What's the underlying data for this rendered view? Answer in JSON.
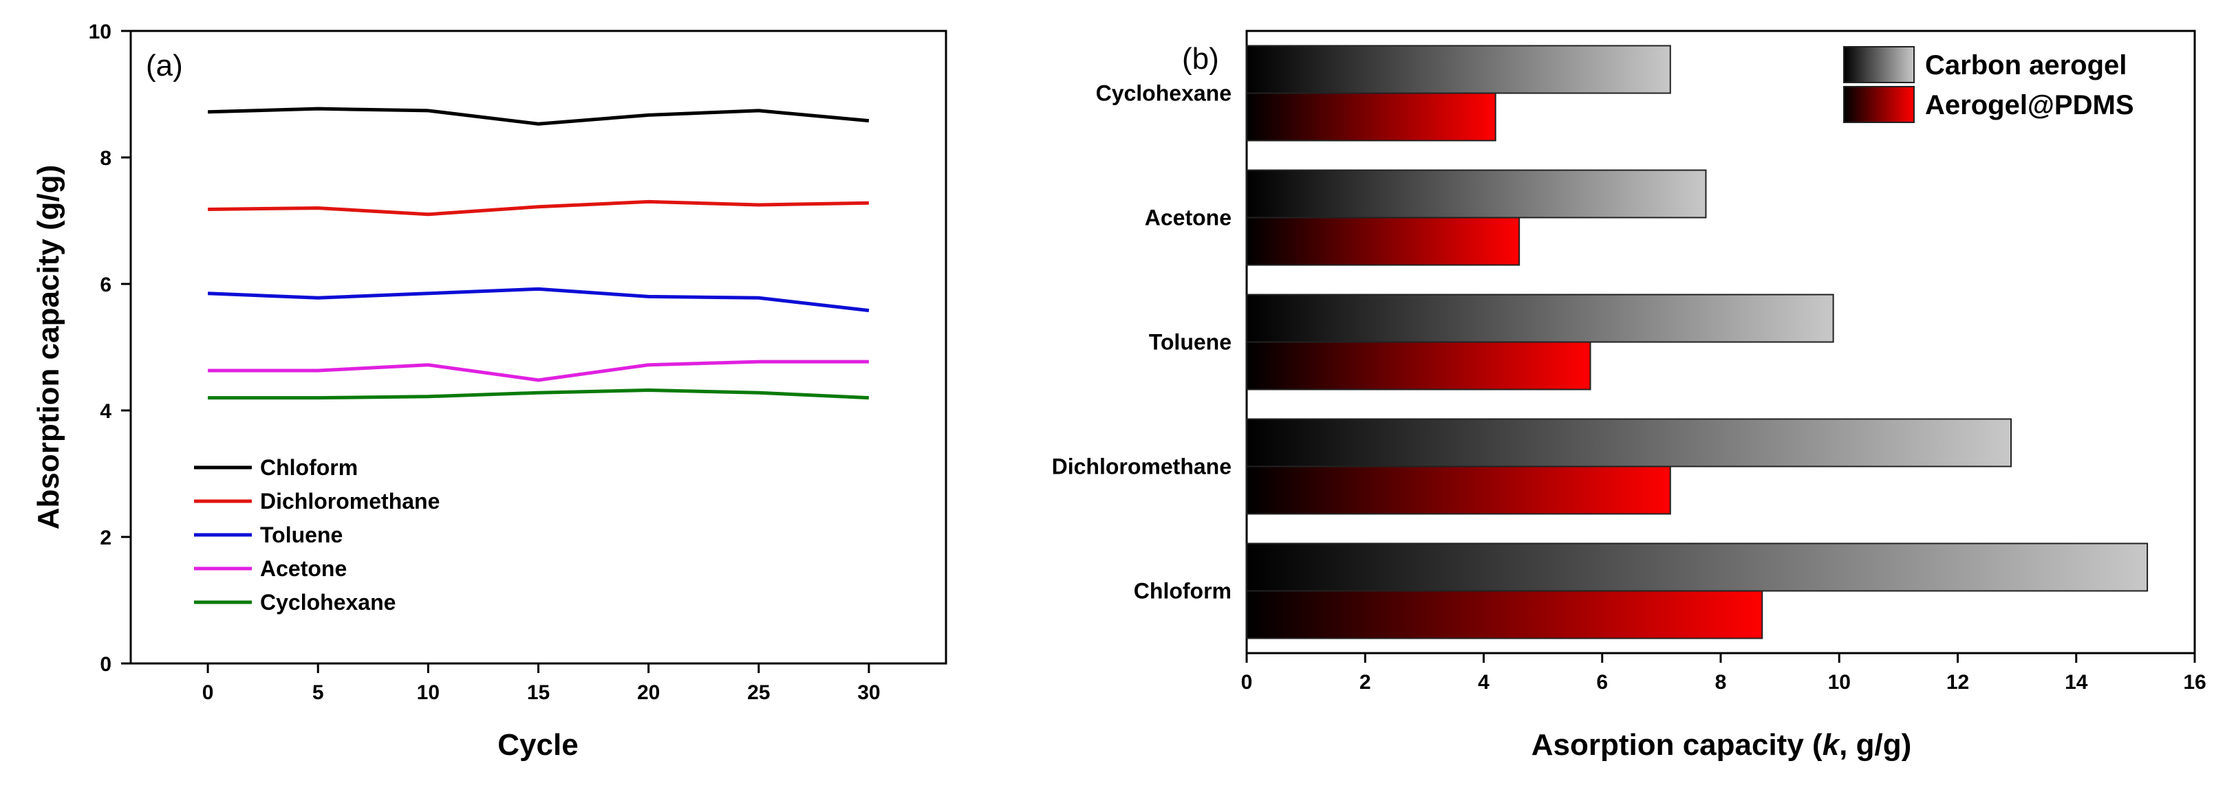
{
  "chart_data": [
    {
      "type": "line",
      "panel_label": "(a)",
      "xlabel": "Cycle",
      "ylabel": "Absorption capacity (g/g)",
      "x": [
        0,
        5,
        10,
        15,
        20,
        25,
        30
      ],
      "xlim": [
        -3.5,
        33.5
      ],
      "ylim": [
        0,
        10
      ],
      "xticks": [
        0,
        5,
        10,
        15,
        20,
        25,
        30
      ],
      "yticks": [
        0,
        2,
        4,
        6,
        8,
        10
      ],
      "legend_position": "lower-left",
      "series": [
        {
          "name": "Chloform",
          "color": "#000000",
          "values": [
            8.72,
            8.77,
            8.74,
            8.53,
            8.67,
            8.74,
            8.58
          ]
        },
        {
          "name": "Dichloromethane",
          "color": "#e0140f",
          "values": [
            7.18,
            7.2,
            7.1,
            7.22,
            7.3,
            7.25,
            7.28
          ]
        },
        {
          "name": "Toluene",
          "color": "#0d0dd6",
          "values": [
            5.85,
            5.78,
            5.85,
            5.92,
            5.8,
            5.78,
            5.58
          ]
        },
        {
          "name": "Acetone",
          "color": "#e020e0",
          "values": [
            4.63,
            4.63,
            4.72,
            4.48,
            4.72,
            4.77,
            4.77
          ]
        },
        {
          "name": "Cyclohexane",
          "color": "#0a7a0a",
          "values": [
            4.2,
            4.2,
            4.22,
            4.28,
            4.32,
            4.28,
            4.2
          ]
        }
      ]
    },
    {
      "type": "bar",
      "orientation": "horizontal",
      "panel_label": "(b)",
      "xlabel": "Asorption capacity (",
      "xlabel_italic": "k",
      "xlabel_tail": ", g/g)",
      "xlim": [
        0,
        16
      ],
      "xticks": [
        0,
        2,
        4,
        6,
        8,
        10,
        12,
        14,
        16
      ],
      "categories": [
        "Cyclohexane",
        "Acetone",
        "Toluene",
        "Dichloromethane",
        "Chloform"
      ],
      "legend_position": "top-right",
      "series": [
        {
          "name": "Carbon aerogel",
          "gradient": [
            "#000000",
            "#c8c8c8"
          ],
          "values": [
            7.15,
            7.75,
            9.9,
            12.9,
            15.2
          ]
        },
        {
          "name": "Aerogel@PDMS",
          "gradient": [
            "#000000",
            "#ff0000"
          ],
          "values": [
            4.2,
            4.6,
            5.8,
            7.15,
            8.7
          ]
        }
      ]
    }
  ]
}
